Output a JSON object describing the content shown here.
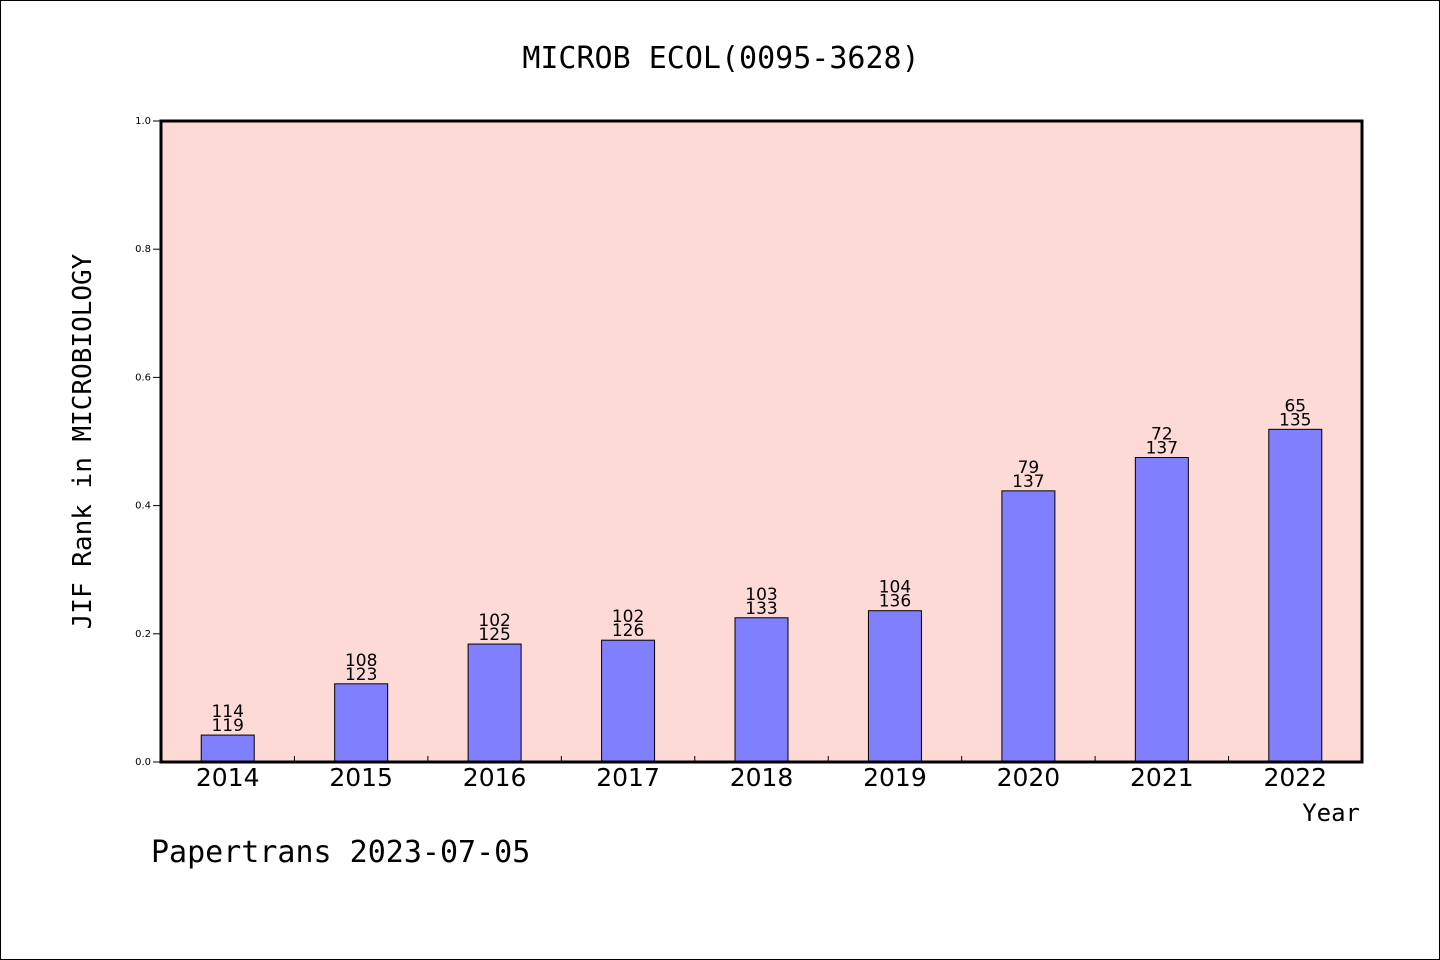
{
  "chart_data": {
    "type": "bar",
    "title": "MICROB ECOL(0095-3628)",
    "xlabel": "Year",
    "ylabel": "JIF Rank in MICROBIOLOGY",
    "ylim": [
      0,
      1
    ],
    "yticks": [
      "0.0",
      "0.2",
      "0.4",
      "0.6",
      "0.8",
      "1.0"
    ],
    "categories": [
      "2014",
      "2015",
      "2016",
      "2017",
      "2018",
      "2019",
      "2020",
      "2021",
      "2022"
    ],
    "values": [
      0.042,
      0.122,
      0.184,
      0.19,
      0.225,
      0.236,
      0.423,
      0.475,
      0.519
    ],
    "rank_labels": [
      "114",
      "108",
      "102",
      "102",
      "103",
      "104",
      "79",
      "72",
      "65"
    ],
    "total_labels": [
      "119",
      "123",
      "125",
      "126",
      "133",
      "136",
      "137",
      "137",
      "135"
    ],
    "grid": false,
    "legend": "none",
    "colors": {
      "plot_background": "#fddad6",
      "bar_fill": "#8080ff",
      "bar_stroke": "#000000"
    }
  },
  "footer": {
    "text": "Papertrans 2023-07-05"
  }
}
